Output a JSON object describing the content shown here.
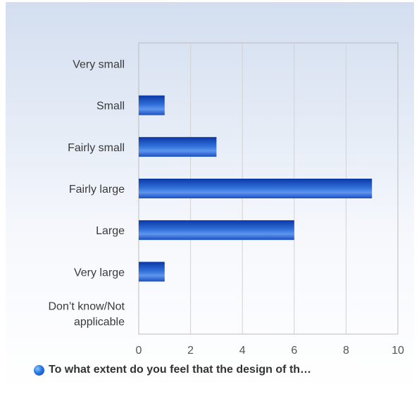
{
  "chart_data": {
    "type": "bar",
    "orientation": "horizontal",
    "categories": [
      "Very small",
      "Small",
      "Fairly small",
      "Fairly large",
      "Large",
      "Very large",
      "Don’t know/Not applicable"
    ],
    "category_lines": [
      [
        "Very small"
      ],
      [
        "Small"
      ],
      [
        "Fairly small"
      ],
      [
        "Fairly large"
      ],
      [
        "Large"
      ],
      [
        "Very large"
      ],
      [
        "Don’t know/Not",
        "applicable"
      ]
    ],
    "series": [
      {
        "name": "To what extent do you feel that the design of th…",
        "values": [
          0,
          1,
          3,
          9,
          6,
          1,
          0
        ]
      }
    ],
    "xlim": [
      0,
      10
    ],
    "xticks": [
      0,
      2,
      4,
      6,
      8,
      10
    ],
    "grid": true,
    "legend_position": "bottom",
    "colors": {
      "bar_dark": "#0b37a6",
      "bar_light": "#5e95ee",
      "grid": "#d2d2d2",
      "axis": "#bcbcbc"
    }
  },
  "legend": {
    "label": "To what extent do you feel that the design of th…"
  }
}
